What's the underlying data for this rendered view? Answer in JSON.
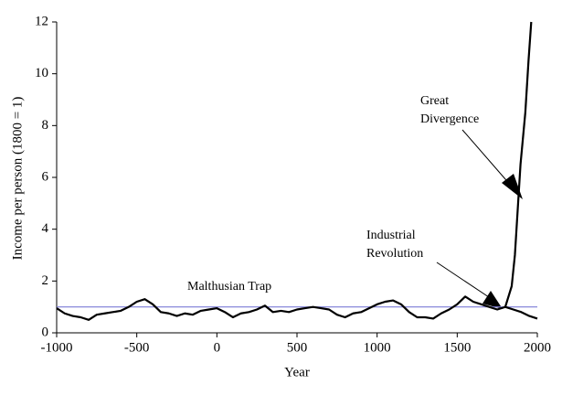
{
  "chart_data": {
    "type": "line",
    "y_label": "Income per person (1800 = 1)",
    "x_label": "Year",
    "xlim": [
      -1000,
      2000
    ],
    "xticks": [
      -1000,
      -500,
      0,
      500,
      1000,
      1500,
      2000
    ],
    "ylim": [
      0,
      12
    ],
    "yticks": [
      0,
      2,
      4,
      6,
      8,
      10,
      12
    ],
    "reference_line": {
      "value": 1,
      "color": "#7b7bd6"
    },
    "series": [
      {
        "color": "#000000",
        "x": [
          -1000,
          -950,
          -900,
          -850,
          -800,
          -750,
          -700,
          -650,
          -600,
          -550,
          -500,
          -450,
          -400,
          -350,
          -300,
          -250,
          -200,
          -150,
          -100,
          -50,
          0,
          50,
          100,
          150,
          200,
          250,
          300,
          350,
          400,
          450,
          500,
          550,
          600,
          650,
          700,
          750,
          800,
          850,
          900,
          950,
          1000,
          1050,
          1100,
          1150,
          1200,
          1250,
          1300,
          1350,
          1400,
          1450,
          1500,
          1550,
          1600,
          1650,
          1700,
          1750,
          1800,
          1850,
          1900,
          1950,
          2000
        ],
        "values": [
          0.95,
          0.75,
          0.65,
          0.6,
          0.5,
          0.7,
          0.75,
          0.8,
          0.85,
          1.0,
          1.2,
          1.3,
          1.1,
          0.8,
          0.75,
          0.65,
          0.75,
          0.7,
          0.85,
          0.9,
          0.95,
          0.8,
          0.6,
          0.75,
          0.8,
          0.9,
          1.05,
          0.8,
          0.85,
          0.8,
          0.9,
          0.95,
          1.0,
          0.95,
          0.9,
          0.7,
          0.6,
          0.75,
          0.8,
          0.95,
          1.1,
          1.2,
          1.25,
          1.1,
          0.8,
          0.6,
          0.6,
          0.55,
          0.75,
          0.9,
          1.1,
          1.4,
          1.2,
          1.1,
          1.0,
          0.9,
          1.0,
          0.9,
          0.8,
          0.65,
          0.55
        ]
      },
      {
        "color": "#000000",
        "x": [
          1800,
          1840,
          1860,
          1880,
          1895,
          1925,
          1945,
          1962
        ],
        "values": [
          1.0,
          1.8,
          3.0,
          5.0,
          6.5,
          8.5,
          10.5,
          12
        ]
      }
    ],
    "annotations": [
      {
        "lines": [
          "Great",
          "Divergence"
        ]
      },
      {
        "lines": [
          "Industrial",
          "Revolution"
        ]
      },
      {
        "lines": [
          "Malthusian Trap"
        ]
      }
    ]
  }
}
